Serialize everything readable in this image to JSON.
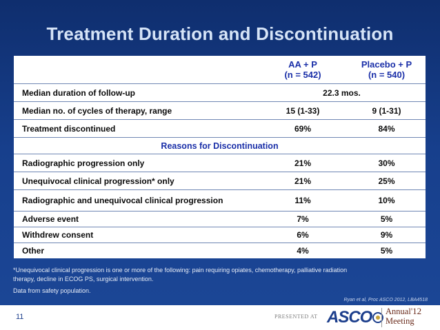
{
  "title": "Treatment Duration and Discontinuation",
  "table": {
    "header": {
      "col1_line1": "AA + P",
      "col1_line2": "(n = 542)",
      "col2_line1": "Placebo + P",
      "col2_line2": "(n = 540)"
    },
    "rows": [
      {
        "label": "Median duration of follow-up",
        "span": "22.3 mos."
      },
      {
        "label": "Median no. of cycles of therapy, range",
        "c1": "15 (1-33)",
        "c2": "9 (1-31)"
      },
      {
        "label": "Treatment discontinued",
        "c1": "69%",
        "c2": "84%"
      }
    ],
    "section_title": "Reasons for Discontinuation",
    "reasons": [
      {
        "label": "Radiographic progression only",
        "c1": "21%",
        "c2": "30%"
      },
      {
        "label": "Unequivocal clinical progression* only",
        "c1": "21%",
        "c2": "25%"
      },
      {
        "label": "Radiographic and unequivocal clinical progression",
        "c1": "11%",
        "c2": "10%"
      },
      {
        "label": "Adverse event",
        "c1": "7%",
        "c2": "5%"
      },
      {
        "label": "Withdrew consent",
        "c1": "6%",
        "c2": "9%"
      },
      {
        "label": "Other",
        "c1": "4%",
        "c2": "5%"
      }
    ]
  },
  "footnote_line1": "*Unequivocal clinical progression is one or more of the following: pain requiring opiates, chemotherapy, palliative radiation",
  "footnote_line2": "therapy, decline in ECOG PS, surgical intervention.",
  "data_note": "Data from safety population.",
  "citation": "Ryan et al, Proc ASCO 2012, LBA4518",
  "footer": {
    "page_number": "11",
    "presented_at": "PRESENTED AT",
    "logo_text": "ASCO",
    "meeting_line1": "Annual",
    "meeting_year": "'12",
    "meeting_line2": "Meeting"
  },
  "colors": {
    "background": "#173f8c",
    "title": "#d6e4f7",
    "header_text": "#1a2fa8"
  }
}
